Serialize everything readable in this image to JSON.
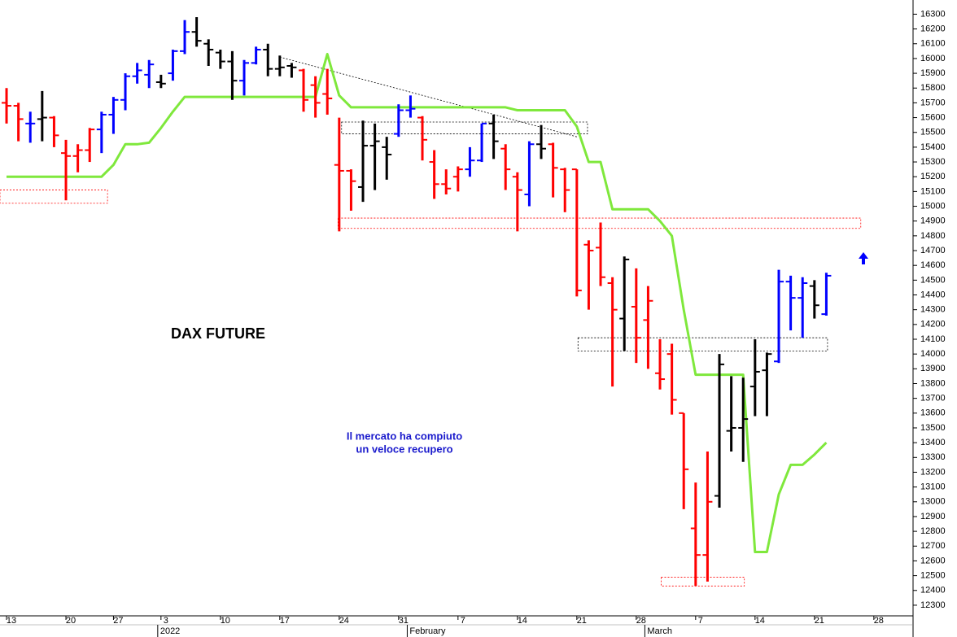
{
  "chart_data": {
    "type": "ohlc",
    "title": "DAX FUTURE",
    "annotation": [
      "Il mercato ha compiuto",
      "un veloce recupero"
    ],
    "x": [
      0,
      1,
      2,
      3,
      4,
      5,
      6,
      7,
      8,
      9,
      10,
      11,
      12,
      13,
      14,
      15,
      16,
      17,
      18,
      19,
      20,
      21,
      22,
      23,
      24,
      25,
      26,
      27,
      28,
      29,
      30,
      31,
      32,
      33,
      34,
      35,
      36,
      37,
      38,
      39,
      40,
      41,
      42,
      43,
      44,
      45,
      46,
      47,
      48,
      49,
      50,
      51,
      52,
      53,
      54,
      55,
      56,
      57,
      58,
      59,
      60,
      61,
      62,
      63,
      64,
      65,
      66,
      67,
      68,
      69
    ],
    "bars": {
      "open": [
        15700,
        15680,
        15560,
        15590,
        15600,
        15360,
        15340,
        15380,
        15520,
        15620,
        15720,
        15880,
        15890,
        15840,
        15900,
        16050,
        16180,
        16100,
        16040,
        15980,
        15850,
        15970,
        16060,
        15930,
        15950,
        15920,
        15820,
        15760,
        15280,
        15240,
        15130,
        15410,
        15400,
        15490,
        15650,
        15600,
        15300,
        15150,
        15200,
        15250,
        15310,
        15560,
        15390,
        15200,
        15080,
        15420,
        15420,
        15250,
        15250,
        14740,
        14720,
        14480,
        14240,
        14320,
        14230,
        13870,
        14000,
        13600,
        12820,
        12640,
        13040,
        13480,
        13500,
        13780,
        13890,
        13950,
        14490,
        14380,
        14460,
        14270
      ],
      "high": [
        15800,
        15700,
        15640,
        15780,
        15610,
        15450,
        15420,
        15530,
        15640,
        15740,
        15900,
        15970,
        15990,
        15890,
        16060,
        16260,
        16280,
        16130,
        16060,
        16050,
        15990,
        16080,
        16100,
        16020,
        15970,
        15930,
        15880,
        15930,
        15600,
        15250,
        15580,
        15560,
        15470,
        15690,
        15750,
        15610,
        15380,
        15250,
        15270,
        15400,
        15560,
        15620,
        15420,
        15230,
        15440,
        15550,
        15430,
        15260,
        15250,
        14770,
        14890,
        14520,
        14660,
        14580,
        14460,
        14100,
        14070,
        13600,
        13130,
        13340,
        14000,
        13850,
        13840,
        14100,
        14010,
        14570,
        14530,
        14520,
        14500,
        14550
      ],
      "low": [
        15560,
        15440,
        15430,
        15440,
        15400,
        15040,
        15230,
        15300,
        15360,
        15490,
        15650,
        15830,
        15800,
        15800,
        15850,
        16030,
        16080,
        15950,
        15930,
        15720,
        15750,
        15960,
        15880,
        15880,
        15870,
        15640,
        15600,
        15620,
        14830,
        14970,
        15030,
        15110,
        15180,
        15470,
        15600,
        15310,
        15050,
        15080,
        15100,
        15200,
        15300,
        15320,
        15110,
        14830,
        15000,
        15320,
        15060,
        14960,
        14390,
        14300,
        14460,
        13780,
        14020,
        13940,
        13900,
        13760,
        13590,
        12950,
        12430,
        12460,
        12960,
        13340,
        13270,
        13580,
        13580,
        13940,
        14160,
        14110,
        14240,
        14260
      ],
      "close": [
        15680,
        15590,
        15560,
        15600,
        15480,
        15340,
        15380,
        15520,
        15620,
        15720,
        15880,
        15920,
        15960,
        15830,
        16050,
        16180,
        16120,
        16060,
        15980,
        15850,
        15970,
        16060,
        15930,
        15940,
        15940,
        15720,
        15700,
        15730,
        15240,
        15170,
        15410,
        15440,
        15350,
        15650,
        15660,
        15450,
        15150,
        15120,
        15250,
        15310,
        15560,
        15440,
        15250,
        15110,
        15420,
        15390,
        15260,
        15110,
        14430,
        14700,
        14520,
        14300,
        14640,
        14110,
        14360,
        13830,
        13690,
        13220,
        12640,
        13000,
        13930,
        13500,
        13560,
        13880,
        14000,
        14490,
        14380,
        14480,
        14330,
        14530
      ],
      "colors": [
        "#ff0000",
        "#ff0000",
        "#0000ff",
        "#000000",
        "#ff0000",
        "#ff0000",
        "#ff0000",
        "#ff0000",
        "#0000ff",
        "#0000ff",
        "#0000ff",
        "#0000ff",
        "#0000ff",
        "#000000",
        "#0000ff",
        "#0000ff",
        "#000000",
        "#000000",
        "#000000",
        "#000000",
        "#0000ff",
        "#0000ff",
        "#000000",
        "#000000",
        "#000000",
        "#ff0000",
        "#ff0000",
        "#ff0000",
        "#ff0000",
        "#ff0000",
        "#000000",
        "#000000",
        "#000000",
        "#0000ff",
        "#0000ff",
        "#ff0000",
        "#ff0000",
        "#ff0000",
        "#ff0000",
        "#0000ff",
        "#0000ff",
        "#000000",
        "#ff0000",
        "#ff0000",
        "#0000ff",
        "#000000",
        "#ff0000",
        "#ff0000",
        "#ff0000",
        "#ff0000",
        "#ff0000",
        "#ff0000",
        "#000000",
        "#ff0000",
        "#ff0000",
        "#ff0000",
        "#ff0000",
        "#ff0000",
        "#ff0000",
        "#ff0000",
        "#000000",
        "#000000",
        "#000000",
        "#000000",
        "#000000",
        "#0000ff",
        "#0000ff",
        "#0000ff",
        "#000000",
        "#0000ff"
      ]
    },
    "line": {
      "color": "#7fe83c",
      "values": [
        15200,
        15200,
        15200,
        15200,
        15200,
        15200,
        15200,
        15200,
        15200,
        15280,
        15420,
        15420,
        15430,
        15530,
        15640,
        15740,
        15740,
        15740,
        15740,
        15740,
        15740,
        15740,
        15740,
        15740,
        15740,
        15740,
        15740,
        16030,
        15750,
        15670,
        15670,
        15670,
        15670,
        15670,
        15670,
        15670,
        15670,
        15670,
        15670,
        15670,
        15670,
        15670,
        15670,
        15650,
        15650,
        15650,
        15650,
        15650,
        15540,
        15300,
        15300,
        14980,
        14980,
        14980,
        14980,
        14900,
        14800,
        14300,
        13860,
        13860,
        13860,
        13860,
        13860,
        12660,
        12660,
        13050,
        13250,
        13250,
        13320,
        13400
      ]
    },
    "zones": [
      {
        "x": [
          -0.6,
          8.5
        ],
        "y": [
          15020,
          15110
        ],
        "color": "#ff0000"
      },
      {
        "x": [
          27.9,
          71.9
        ],
        "y": [
          14850,
          14920
        ],
        "color": "#ff0000"
      },
      {
        "x": [
          28.2,
          48.9
        ],
        "y": [
          15490,
          15570
        ],
        "color": "#000000"
      },
      {
        "x": [
          48.1,
          69.1
        ],
        "y": [
          14020,
          14110
        ],
        "color": "#000000"
      },
      {
        "x": [
          55.1,
          62.1
        ],
        "y": [
          12430,
          12490
        ],
        "color": "#ff0000"
      }
    ],
    "trendline": {
      "x": [
        23,
        48
      ],
      "y": [
        16010,
        15470
      ],
      "color": "#000000"
    },
    "xlim": [
      -0.55,
      76.3
    ],
    "ylim": [
      12228,
      16396
    ],
    "xticks": [
      {
        "value": 0,
        "label": "13"
      },
      {
        "value": 5,
        "label": "20"
      },
      {
        "value": 9,
        "label": "27"
      },
      {
        "value": 13,
        "label": "3"
      },
      {
        "value": 18,
        "label": "10"
      },
      {
        "value": 23,
        "label": "17"
      },
      {
        "value": 28,
        "label": "24"
      },
      {
        "value": 33,
        "label": "31"
      },
      {
        "value": 38,
        "label": "7"
      },
      {
        "value": 43,
        "label": "14"
      },
      {
        "value": 48,
        "label": "21"
      },
      {
        "value": 53,
        "label": "28"
      },
      {
        "value": 58,
        "label": "7"
      },
      {
        "value": 63,
        "label": "14"
      },
      {
        "value": 68,
        "label": "21"
      },
      {
        "value": 73,
        "label": "28"
      }
    ],
    "month_ticks": [
      {
        "value": 13,
        "label": "2022"
      },
      {
        "value": 34,
        "label": "February"
      },
      {
        "value": 54,
        "label": "March"
      }
    ],
    "yticks": [
      12300,
      12400,
      12500,
      12600,
      12700,
      12800,
      12900,
      13000,
      13100,
      13200,
      13300,
      13400,
      13500,
      13600,
      13700,
      13800,
      13900,
      14000,
      14100,
      14200,
      14300,
      14400,
      14500,
      14600,
      14700,
      14800,
      14900,
      15000,
      15100,
      15200,
      15300,
      15400,
      15500,
      15600,
      15700,
      15800,
      15900,
      16000,
      16100,
      16200,
      16300
    ]
  }
}
